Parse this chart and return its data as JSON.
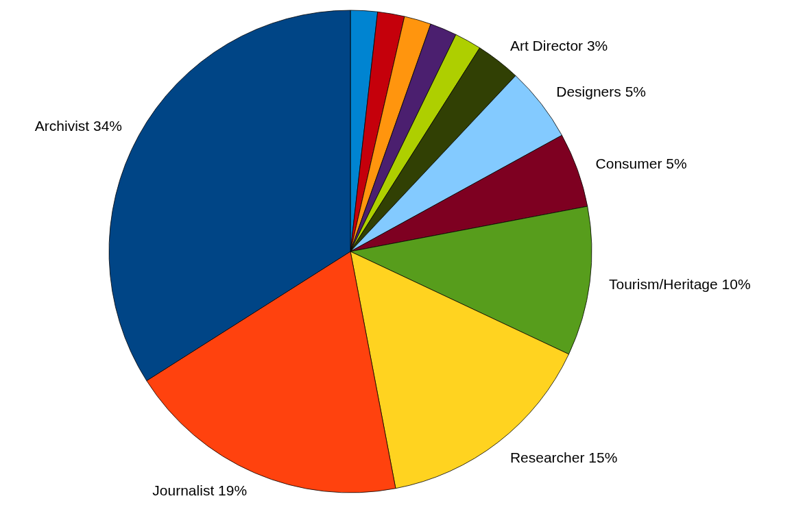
{
  "chart_data": {
    "type": "pie",
    "categories": [
      null,
      null,
      null,
      null,
      null,
      "Art Director",
      "Designers",
      "Consumer",
      "Tourism/Heritage",
      "Researcher",
      "Journalist",
      "Archivist"
    ],
    "values": [
      1.8,
      1.8,
      1.8,
      1.8,
      1.8,
      3,
      5,
      5,
      10,
      15,
      19,
      34
    ],
    "value_labels": [
      null,
      null,
      null,
      null,
      null,
      "3%",
      "5%",
      "5%",
      "10%",
      "15%",
      "19%",
      "34%"
    ],
    "colors": [
      "#0084d1",
      "#c5000b",
      "#ff950e",
      "#4b1f6f",
      "#aecf00",
      "#314004",
      "#83caff",
      "#7e0021",
      "#579d1c",
      "#ffd320",
      "#ff420e",
      "#004586"
    ]
  }
}
